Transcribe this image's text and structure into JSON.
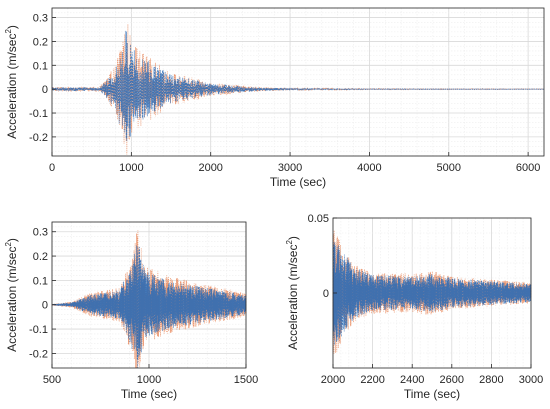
{
  "chart_data": [
    {
      "type": "line",
      "panel": "full-record",
      "title": "",
      "xlabel": "Time (sec)",
      "ylabel": "Acceleration (m/sec",
      "ylabel_sup": "2",
      "ylabel_close": ")",
      "xlim": [
        0,
        6200
      ],
      "ylim": [
        -0.28,
        0.34
      ],
      "xticks": [
        0,
        1000,
        2000,
        3000,
        4000,
        5000,
        6000
      ],
      "xtick_labels": [
        "0",
        "1000",
        "2000",
        "3000",
        "4000",
        "5000",
        "6000"
      ],
      "yticks": [
        -0.2,
        -0.1,
        0,
        0.1,
        0.2,
        0.3
      ],
      "ytick_labels": [
        "-0.2",
        "-0.1",
        "0",
        "0.1",
        "0.2",
        "0.3"
      ],
      "grid": true,
      "series": [
        {
          "color": "#e8875b",
          "style": "dotted",
          "envelope": [
            [
              600,
              0.01
            ],
            [
              800,
              0.1
            ],
            [
              940,
              0.32
            ],
            [
              1000,
              0.2
            ],
            [
              1200,
              0.14
            ],
            [
              1500,
              0.07
            ],
            [
              2000,
              0.03
            ],
            [
              2500,
              0.012
            ],
            [
              3000,
              0.004
            ],
            [
              4000,
              0.002
            ],
            [
              6200,
              0.0015
            ]
          ]
        },
        {
          "color": "#2e6cb5",
          "style": "dashed",
          "envelope": [
            [
              600,
              0.008
            ],
            [
              800,
              0.08
            ],
            [
              940,
              0.28
            ],
            [
              1000,
              0.18
            ],
            [
              1200,
              0.12
            ],
            [
              1500,
              0.06
            ],
            [
              2000,
              0.025
            ],
            [
              2500,
              0.01
            ],
            [
              3000,
              0.003
            ],
            [
              4000,
              0.0015
            ],
            [
              6200,
              0.001
            ]
          ]
        }
      ]
    },
    {
      "type": "line",
      "panel": "zoom-500-1500",
      "title": "",
      "xlabel": "Time (sec)",
      "ylabel": "Acceleration (m/sec",
      "ylabel_sup": "2",
      "ylabel_close": ")",
      "xlim": [
        500,
        1500
      ],
      "ylim": [
        -0.26,
        0.34
      ],
      "xticks": [
        500,
        1000,
        1500
      ],
      "xtick_labels": [
        "500",
        "1000",
        "1500"
      ],
      "yticks": [
        -0.2,
        -0.1,
        0,
        0.1,
        0.2,
        0.3
      ],
      "ytick_labels": [
        "-0.2",
        "-0.1",
        "0",
        "0.1",
        "0.2",
        "0.3"
      ],
      "grid": true,
      "series": [
        {
          "color": "#e8875b",
          "style": "dotted",
          "envelope": [
            [
              500,
              0.003
            ],
            [
              600,
              0.012
            ],
            [
              700,
              0.05
            ],
            [
              850,
              0.07
            ],
            [
              920,
              0.22
            ],
            [
              940,
              0.32
            ],
            [
              980,
              0.16
            ],
            [
              1100,
              0.12
            ],
            [
              1300,
              0.08
            ],
            [
              1500,
              0.05
            ]
          ]
        },
        {
          "color": "#2e6cb5",
          "style": "dashed",
          "envelope": [
            [
              500,
              0.002
            ],
            [
              600,
              0.01
            ],
            [
              700,
              0.04
            ],
            [
              850,
              0.06
            ],
            [
              920,
              0.2
            ],
            [
              940,
              0.28
            ],
            [
              980,
              0.14
            ],
            [
              1100,
              0.1
            ],
            [
              1300,
              0.07
            ],
            [
              1500,
              0.04
            ]
          ]
        }
      ]
    },
    {
      "type": "line",
      "panel": "zoom-2000-3000",
      "title": "",
      "xlabel": "Time (sec)",
      "ylabel": "Acceleration (m/sec",
      "ylabel_sup": "2",
      "ylabel_close": ")",
      "xlim": [
        2000,
        3000
      ],
      "ylim": [
        -0.05,
        0.05
      ],
      "xticks": [
        2000,
        2200,
        2400,
        2600,
        2800,
        3000
      ],
      "xtick_labels": [
        "2000",
        "2200",
        "2400",
        "2600",
        "2800",
        "3000"
      ],
      "yticks": [
        0,
        0.05
      ],
      "ytick_labels": [
        "0",
        "0.05"
      ],
      "grid": true,
      "series": [
        {
          "color": "#e8875b",
          "style": "dotted",
          "envelope": [
            [
              2000,
              0.045
            ],
            [
              2050,
              0.03
            ],
            [
              2100,
              0.02
            ],
            [
              2200,
              0.014
            ],
            [
              2400,
              0.013
            ],
            [
              2500,
              0.015
            ],
            [
              2600,
              0.011
            ],
            [
              2800,
              0.009
            ],
            [
              3000,
              0.007
            ]
          ]
        },
        {
          "color": "#2e6cb5",
          "style": "dashed",
          "envelope": [
            [
              2000,
              0.04
            ],
            [
              2050,
              0.028
            ],
            [
              2100,
              0.018
            ],
            [
              2200,
              0.012
            ],
            [
              2400,
              0.011
            ],
            [
              2500,
              0.013
            ],
            [
              2600,
              0.01
            ],
            [
              2800,
              0.008
            ],
            [
              3000,
              0.006
            ]
          ]
        }
      ]
    }
  ]
}
